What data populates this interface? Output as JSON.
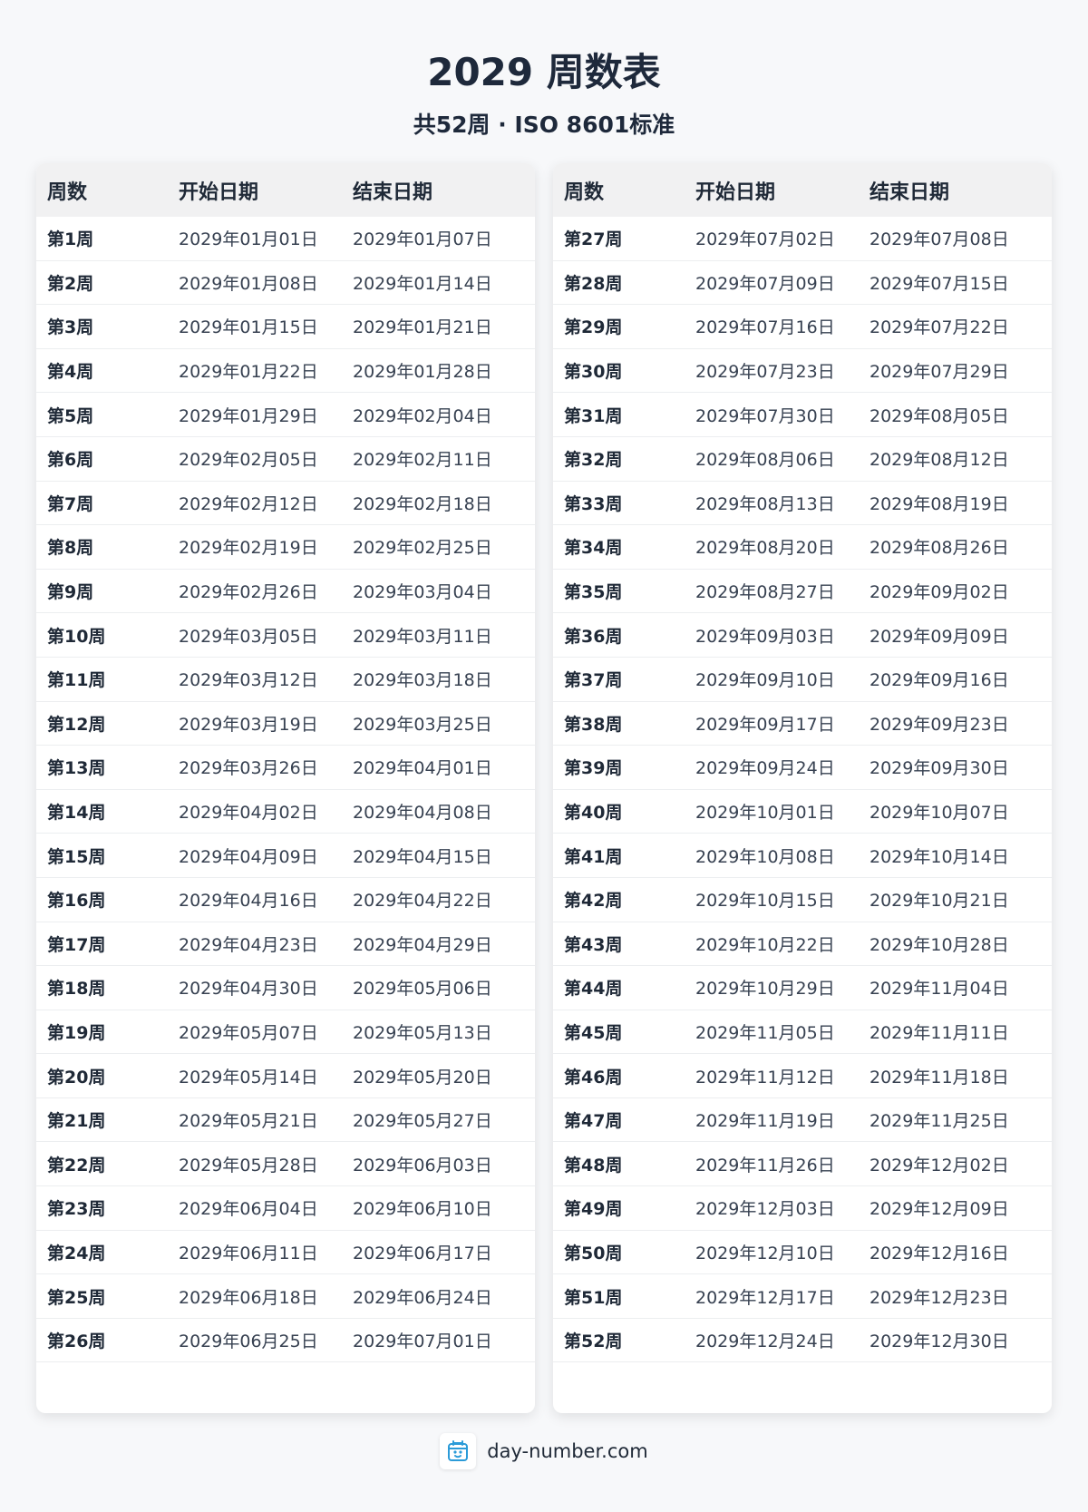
{
  "title": "2029 周数表",
  "subtitle": "共52周 · ISO 8601标准",
  "columns": [
    "周数",
    "开始日期",
    "结束日期"
  ],
  "left_rows": [
    [
      "第1周",
      "2029年01月01日",
      "2029年01月07日"
    ],
    [
      "第2周",
      "2029年01月08日",
      "2029年01月14日"
    ],
    [
      "第3周",
      "2029年01月15日",
      "2029年01月21日"
    ],
    [
      "第4周",
      "2029年01月22日",
      "2029年01月28日"
    ],
    [
      "第5周",
      "2029年01月29日",
      "2029年02月04日"
    ],
    [
      "第6周",
      "2029年02月05日",
      "2029年02月11日"
    ],
    [
      "第7周",
      "2029年02月12日",
      "2029年02月18日"
    ],
    [
      "第8周",
      "2029年02月19日",
      "2029年02月25日"
    ],
    [
      "第9周",
      "2029年02月26日",
      "2029年03月04日"
    ],
    [
      "第10周",
      "2029年03月05日",
      "2029年03月11日"
    ],
    [
      "第11周",
      "2029年03月12日",
      "2029年03月18日"
    ],
    [
      "第12周",
      "2029年03月19日",
      "2029年03月25日"
    ],
    [
      "第13周",
      "2029年03月26日",
      "2029年04月01日"
    ],
    [
      "第14周",
      "2029年04月02日",
      "2029年04月08日"
    ],
    [
      "第15周",
      "2029年04月09日",
      "2029年04月15日"
    ],
    [
      "第16周",
      "2029年04月16日",
      "2029年04月22日"
    ],
    [
      "第17周",
      "2029年04月23日",
      "2029年04月29日"
    ],
    [
      "第18周",
      "2029年04月30日",
      "2029年05月06日"
    ],
    [
      "第19周",
      "2029年05月07日",
      "2029年05月13日"
    ],
    [
      "第20周",
      "2029年05月14日",
      "2029年05月20日"
    ],
    [
      "第21周",
      "2029年05月21日",
      "2029年05月27日"
    ],
    [
      "第22周",
      "2029年05月28日",
      "2029年06月03日"
    ],
    [
      "第23周",
      "2029年06月04日",
      "2029年06月10日"
    ],
    [
      "第24周",
      "2029年06月11日",
      "2029年06月17日"
    ],
    [
      "第25周",
      "2029年06月18日",
      "2029年06月24日"
    ],
    [
      "第26周",
      "2029年06月25日",
      "2029年07月01日"
    ]
  ],
  "right_rows": [
    [
      "第27周",
      "2029年07月02日",
      "2029年07月08日"
    ],
    [
      "第28周",
      "2029年07月09日",
      "2029年07月15日"
    ],
    [
      "第29周",
      "2029年07月16日",
      "2029年07月22日"
    ],
    [
      "第30周",
      "2029年07月23日",
      "2029年07月29日"
    ],
    [
      "第31周",
      "2029年07月30日",
      "2029年08月05日"
    ],
    [
      "第32周",
      "2029年08月06日",
      "2029年08月12日"
    ],
    [
      "第33周",
      "2029年08月13日",
      "2029年08月19日"
    ],
    [
      "第34周",
      "2029年08月20日",
      "2029年08月26日"
    ],
    [
      "第35周",
      "2029年08月27日",
      "2029年09月02日"
    ],
    [
      "第36周",
      "2029年09月03日",
      "2029年09月09日"
    ],
    [
      "第37周",
      "2029年09月10日",
      "2029年09月16日"
    ],
    [
      "第38周",
      "2029年09月17日",
      "2029年09月23日"
    ],
    [
      "第39周",
      "2029年09月24日",
      "2029年09月30日"
    ],
    [
      "第40周",
      "2029年10月01日",
      "2029年10月07日"
    ],
    [
      "第41周",
      "2029年10月08日",
      "2029年10月14日"
    ],
    [
      "第42周",
      "2029年10月15日",
      "2029年10月21日"
    ],
    [
      "第43周",
      "2029年10月22日",
      "2029年10月28日"
    ],
    [
      "第44周",
      "2029年10月29日",
      "2029年11月04日"
    ],
    [
      "第45周",
      "2029年11月05日",
      "2029年11月11日"
    ],
    [
      "第46周",
      "2029年11月12日",
      "2029年11月18日"
    ],
    [
      "第47周",
      "2029年11月19日",
      "2029年11月25日"
    ],
    [
      "第48周",
      "2029年11月26日",
      "2029年12月02日"
    ],
    [
      "第49周",
      "2029年12月03日",
      "2029年12月09日"
    ],
    [
      "第50周",
      "2029年12月10日",
      "2029年12月16日"
    ],
    [
      "第51周",
      "2029年12月17日",
      "2029年12月23日"
    ],
    [
      "第52周",
      "2029年12月24日",
      "2029年12月30日"
    ]
  ],
  "footer": {
    "site": "day-number.com",
    "icon": "calendar-smile-icon",
    "icon_color": "#2b9bd8"
  }
}
